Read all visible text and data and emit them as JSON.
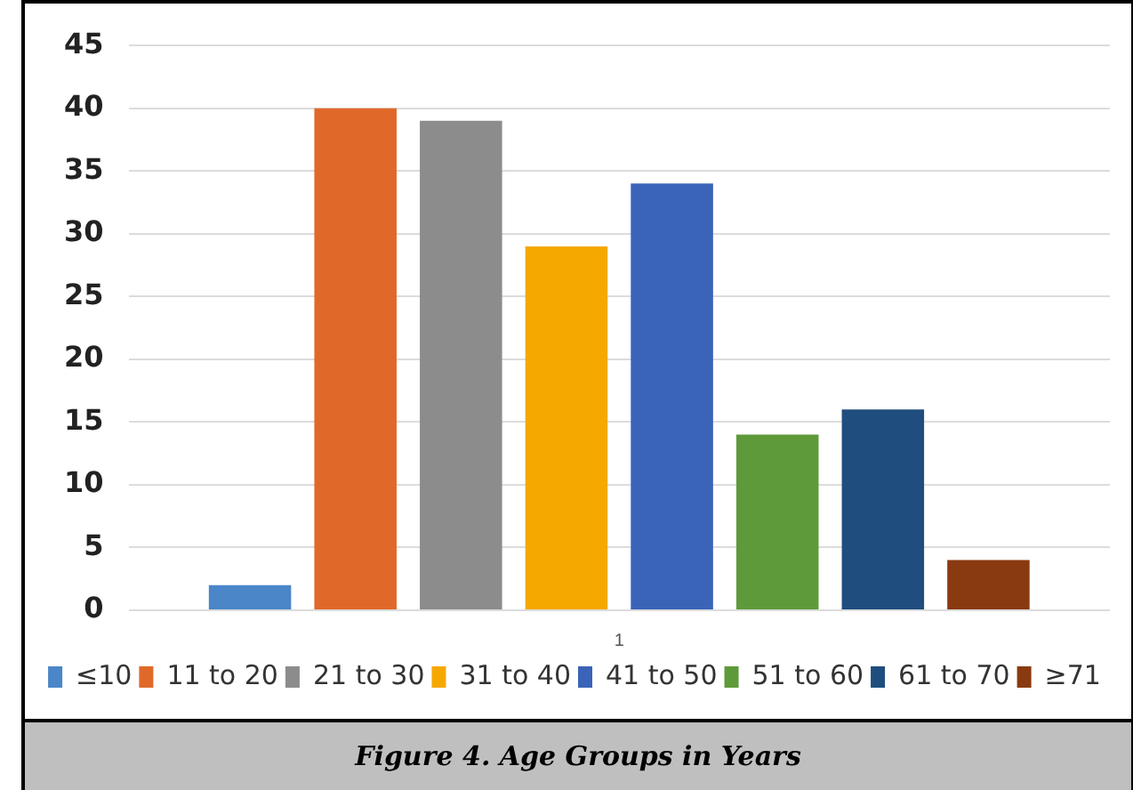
{
  "chart_data": {
    "type": "bar",
    "categories": [
      "1"
    ],
    "series": [
      {
        "name": "≤10",
        "color": "#4a86c8",
        "values": [
          2
        ]
      },
      {
        "name": "11 to 20",
        "color": "#e0692a",
        "values": [
          40
        ]
      },
      {
        "name": "21 to 30",
        "color": "#8c8c8c",
        "values": [
          39
        ]
      },
      {
        "name": "31 to 40",
        "color": "#f5a800",
        "values": [
          29
        ]
      },
      {
        "name": "41 to 50",
        "color": "#3a64b8",
        "values": [
          34
        ]
      },
      {
        "name": "51 to 60",
        "color": "#5e9a3a",
        "values": [
          14
        ]
      },
      {
        "name": "61 to 70",
        "color": "#1f4e7e",
        "values": [
          16
        ]
      },
      {
        "name": "≥71",
        "color": "#8a3a10",
        "values": [
          4
        ]
      }
    ],
    "ylim": [
      0,
      45
    ],
    "yticks": [
      0,
      5,
      10,
      15,
      20,
      25,
      30,
      35,
      40,
      45
    ],
    "grid": "y",
    "legend": "bottom",
    "annotations": [
      "Figure 4. Age Groups in Years"
    ]
  }
}
